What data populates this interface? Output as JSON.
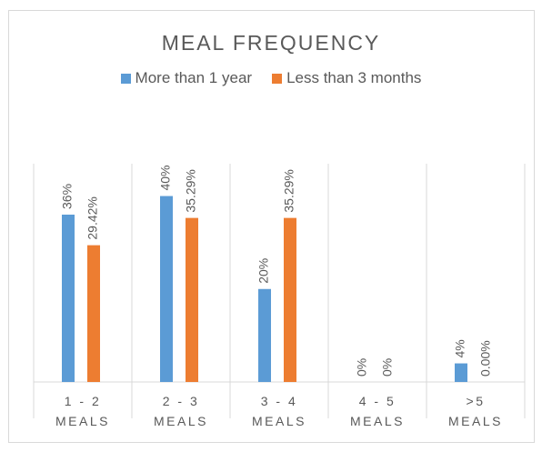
{
  "chart_data": {
    "type": "bar",
    "title": "MEAL FREQUENCY",
    "categories": [
      "1 - 2 MEALS",
      "2 - 3 MEALS",
      "3 - 4 MEALS",
      "4 - 5 MEALS",
      ">5 MEALS"
    ],
    "series": [
      {
        "name": "More than 1 year",
        "color": "#5b9bd5",
        "values": [
          36,
          40,
          20,
          0,
          4
        ],
        "value_labels": [
          "36%",
          "40%",
          "20%",
          "0%",
          "4%"
        ]
      },
      {
        "name": "Less than 3 months",
        "color": "#ed7d31",
        "values": [
          29.42,
          35.29,
          35.29,
          0,
          0
        ],
        "value_labels": [
          "29.42%",
          "35.29%",
          "35.29%",
          "0%",
          "0.00%"
        ]
      }
    ],
    "ylim": [
      0,
      45
    ],
    "legend": "top"
  }
}
